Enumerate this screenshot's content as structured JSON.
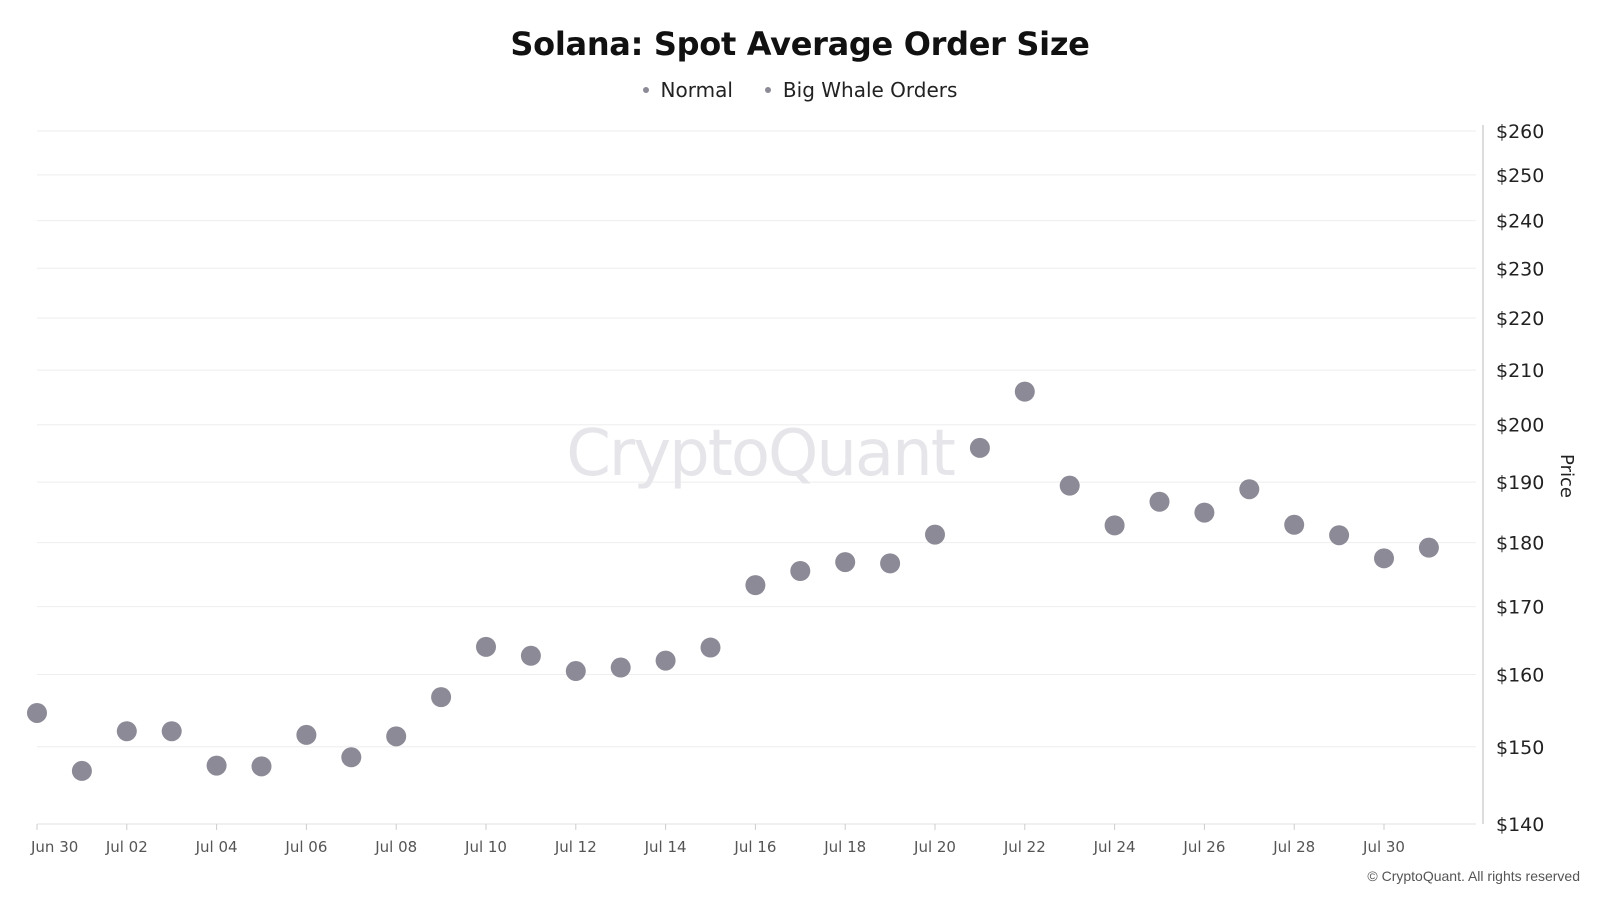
{
  "chart_data": {
    "type": "scatter",
    "title": "Solana: Spot Average Order Size",
    "legend": [
      "Normal",
      "Big Whale Orders"
    ],
    "legend_colors": [
      "#8c8a96",
      "#8c8a96"
    ],
    "ylabel": "Price",
    "y_axis_side": "right",
    "y_scale": "log",
    "ylim": [
      140,
      260
    ],
    "y_ticks": [
      "$140",
      "$150",
      "$160",
      "$170",
      "$180",
      "$190",
      "$200",
      "$210",
      "$220",
      "$230",
      "$240",
      "$250",
      "$260"
    ],
    "y_tick_values": [
      140,
      150,
      160,
      170,
      180,
      190,
      200,
      210,
      220,
      230,
      240,
      250,
      260
    ],
    "x_tick_labels": [
      "Jun 30",
      "Jul 02",
      "Jul 04",
      "Jul 06",
      "Jul 08",
      "Jul 10",
      "Jul 12",
      "Jul 14",
      "Jul 16",
      "Jul 18",
      "Jul 20",
      "Jul 22",
      "Jul 24",
      "Jul 26",
      "Jul 28",
      "Jul 30"
    ],
    "grid": "horizontal",
    "marker_color": "#8c8a96",
    "series": [
      {
        "name": "Big Whale Orders",
        "x": [
          "Jun 30",
          "Jul 01",
          "Jul 02",
          "Jul 03",
          "Jul 04",
          "Jul 05",
          "Jul 06",
          "Jul 07",
          "Jul 08",
          "Jul 09",
          "Jul 10",
          "Jul 11",
          "Jul 12",
          "Jul 13",
          "Jul 14",
          "Jul 15",
          "Jul 16",
          "Jul 17",
          "Jul 18",
          "Jul 19",
          "Jul 20",
          "Jul 21",
          "Jul 22",
          "Jul 23",
          "Jul 24",
          "Jul 25",
          "Jul 26",
          "Jul 27",
          "Jul 28",
          "Jul 29",
          "Jul 30",
          "Jul 31"
        ],
        "values": [
          154.6,
          146.8,
          152.1,
          152.1,
          147.5,
          147.4,
          151.6,
          148.6,
          151.4,
          156.8,
          164.0,
          162.7,
          160.5,
          161.0,
          162.0,
          163.9,
          173.3,
          175.5,
          176.9,
          176.7,
          181.3,
          195.9,
          206.0,
          189.4,
          182.8,
          186.7,
          184.9,
          188.8,
          182.9,
          181.2,
          177.5,
          179.2
        ]
      }
    ]
  },
  "watermark": "CryptoQuant",
  "copyright": "© CryptoQuant. All rights reserved"
}
